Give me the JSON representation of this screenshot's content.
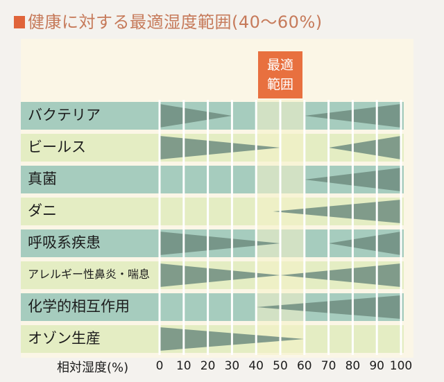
{
  "title": "健康に対する最適湿度範囲(40〜60%)",
  "optimal_label_line1": "最適",
  "optimal_label_line2": "範囲",
  "axis_name": "相対湿度(%)",
  "colors": {
    "title": "#c67a5a",
    "title_mark": "#e0643a",
    "badge": "#e8703f",
    "row_light": "#e4edc3",
    "row_dark": "#a6ccbe",
    "optimal_band": "#f6f2c9",
    "wedge": "#6f8c80"
  },
  "chart_data": {
    "type": "bar",
    "title": "健康に対する最適湿度範囲(40〜60%)",
    "xlabel": "相対湿度(%)",
    "xlim": [
      0,
      100
    ],
    "xticks": [
      "0",
      "10",
      "20",
      "30",
      "40",
      "50",
      "60",
      "70",
      "80",
      "90",
      "100"
    ],
    "optimal_range": [
      40,
      60
    ],
    "optimal_label": "最適範囲",
    "grid": true,
    "rows": [
      {
        "label": "バクテリア",
        "low_end": 30,
        "high_start": 60
      },
      {
        "label": "ビールス",
        "low_end": 50,
        "high_start": 70
      },
      {
        "label": "真菌",
        "low_end": null,
        "high_start": 60
      },
      {
        "label": "ダニ",
        "low_end": null,
        "high_start": 47
      },
      {
        "label": "呼吸系疾患",
        "low_end": 50,
        "high_start": 70
      },
      {
        "label": "アレルギー性鼻炎・喘息",
        "low_end": 50,
        "high_start": 50
      },
      {
        "label": "化学的相互作用",
        "low_end": null,
        "high_start": 40
      },
      {
        "label": "オゾン生産",
        "low_end": 60,
        "high_start": null
      }
    ]
  }
}
